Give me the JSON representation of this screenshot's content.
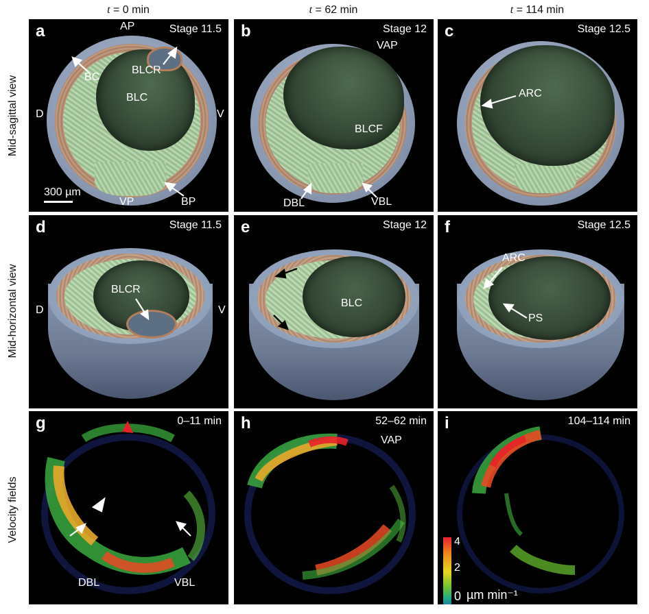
{
  "columns": [
    {
      "prefix": "t",
      "text": " = 0 min"
    },
    {
      "prefix": "t",
      "text": " = 62 min"
    },
    {
      "prefix": "t",
      "text": " = 114 min"
    }
  ],
  "rows": [
    "Mid-sagittal view",
    "Mid-horizontal view",
    "Velocity fields"
  ],
  "panels": {
    "a": {
      "letter": "a",
      "stage": "Stage 11.5",
      "AP": "AP",
      "BC": "BC",
      "BLCR": "BLCR",
      "BLC": "BLC",
      "D": "D",
      "V": "V",
      "VP": "VP",
      "BP": "BP",
      "scale": "300 µm"
    },
    "b": {
      "letter": "b",
      "stage": "Stage 12",
      "VAP": "VAP",
      "BLCF": "BLCF",
      "DBL": "DBL",
      "VBL": "VBL"
    },
    "c": {
      "letter": "c",
      "stage": "Stage 12.5",
      "ARC": "ARC"
    },
    "d": {
      "letter": "d",
      "stage": "Stage 11.5",
      "BLCR": "BLCR",
      "D": "D",
      "V": "V"
    },
    "e": {
      "letter": "e",
      "stage": "Stage 12",
      "BLC": "BLC"
    },
    "f": {
      "letter": "f",
      "stage": "Stage 12.5",
      "ARC": "ARC",
      "PS": "PS"
    },
    "g": {
      "letter": "g",
      "stage": "0–11 min",
      "DBL": "DBL",
      "VBL": "VBL"
    },
    "h": {
      "letter": "h",
      "stage": "52–62 min",
      "VAP": "VAP"
    },
    "i": {
      "letter": "i",
      "stage": "104–114 min",
      "cbar_max": "4",
      "cbar_mid": "2",
      "cbar_min": "0",
      "unit": "µm min⁻¹"
    }
  },
  "colors": {
    "arrow_white": "#ffffff",
    "arrowhead_red": "#e8222a",
    "arrow_black": "#000000"
  }
}
